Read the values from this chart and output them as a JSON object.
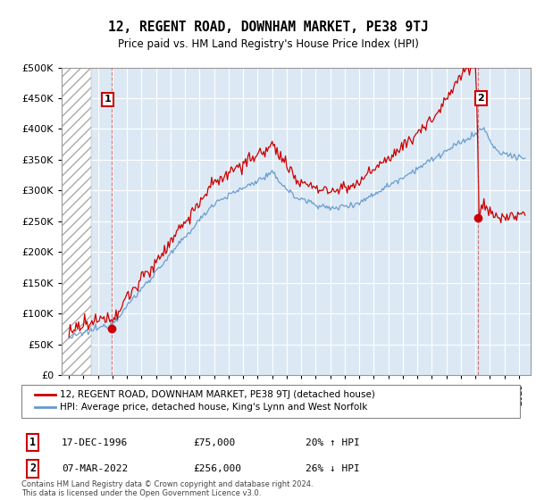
{
  "title": "12, REGENT ROAD, DOWNHAM MARKET, PE38 9TJ",
  "subtitle": "Price paid vs. HM Land Registry's House Price Index (HPI)",
  "legend_line1": "12, REGENT ROAD, DOWNHAM MARKET, PE38 9TJ (detached house)",
  "legend_line2": "HPI: Average price, detached house, King's Lynn and West Norfolk",
  "annotation1_date": "17-DEC-1996",
  "annotation1_price": "£75,000",
  "annotation1_hpi": "20% ↑ HPI",
  "annotation2_date": "07-MAR-2022",
  "annotation2_price": "£256,000",
  "annotation2_hpi": "26% ↓ HPI",
  "footer": "Contains HM Land Registry data © Crown copyright and database right 2024.\nThis data is licensed under the Open Government Licence v3.0.",
  "sale1_year": 1996.96,
  "sale1_price": 75000,
  "sale2_year": 2022.18,
  "sale2_price": 256000,
  "red_color": "#cc0000",
  "blue_color": "#6699cc",
  "plot_bg_color": "#dce9f5",
  "grid_color": "#ffffff",
  "ylim": [
    0,
    500000
  ],
  "xlim_left": 1993.5,
  "xlim_right": 2025.8,
  "background_color": "#ffffff"
}
